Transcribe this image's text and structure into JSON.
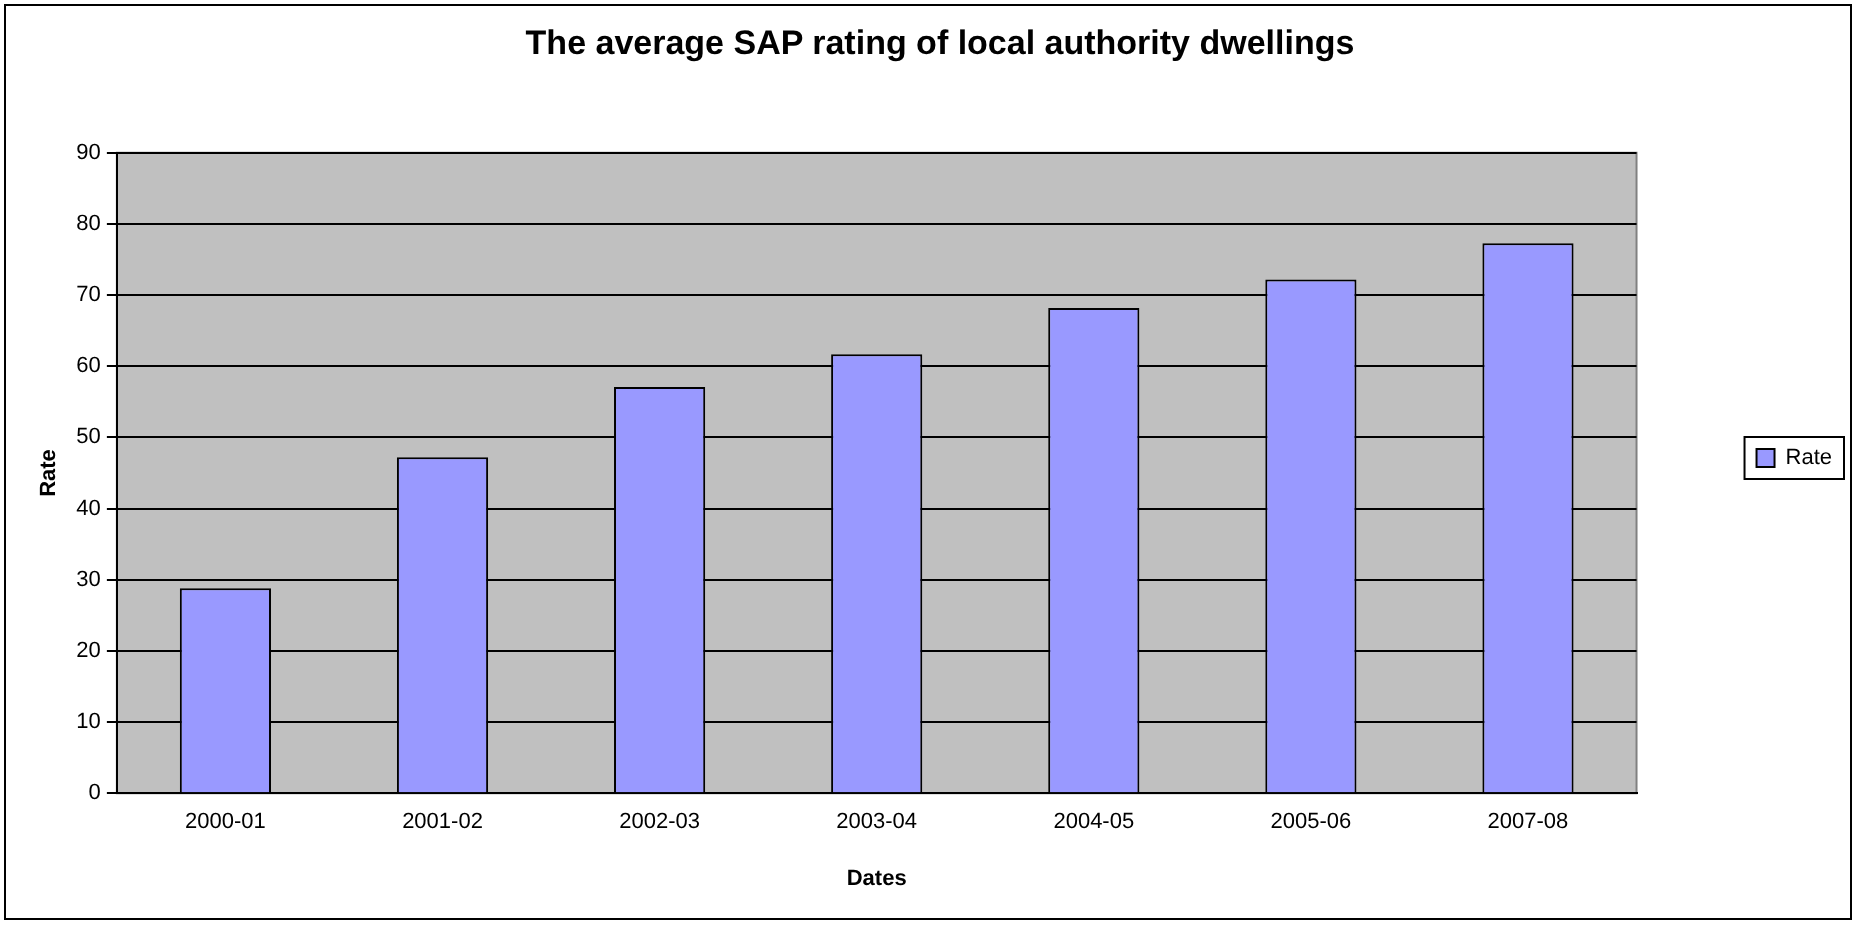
{
  "chart_data": {
    "type": "bar",
    "title": "The average SAP rating of local authority dwellings",
    "xlabel": "Dates",
    "ylabel": "Rate",
    "categories": [
      "2000-01",
      "2001-02",
      "2002-03",
      "2003-04",
      "2004-05",
      "2005-06",
      "2007-08"
    ],
    "series": [
      {
        "name": "Rate",
        "color": "#9999ff",
        "values": [
          28.8,
          47.2,
          57.1,
          61.7,
          68.2,
          72.2,
          77.3
        ]
      }
    ],
    "ylim": [
      0,
      90
    ],
    "yticks": [
      0,
      10,
      20,
      30,
      40,
      50,
      60,
      70,
      80,
      90
    ],
    "grid": "y",
    "legend": "right"
  }
}
